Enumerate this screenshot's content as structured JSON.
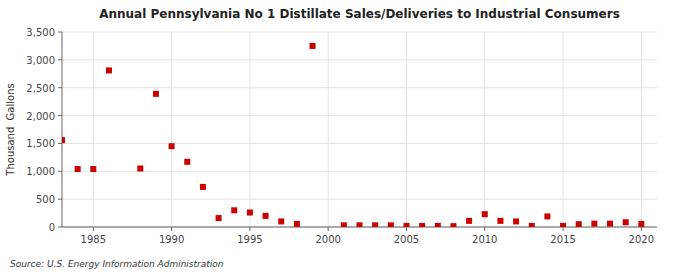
{
  "chart_data": {
    "type": "scatter",
    "title": "Annual Pennsylvania No 1 Distillate Sales/Deliveries to Industrial Consumers",
    "y_label": "Thousand  Gallons",
    "annotations": [
      "Source: U.S. Energy Information Administration"
    ],
    "color": "#cc0000",
    "marker": "square",
    "grid": true,
    "x": [
      1983,
      1984,
      1985,
      1986,
      1988,
      1989,
      1990,
      1991,
      1992,
      1993,
      1994,
      1995,
      1996,
      1997,
      1998,
      1999,
      2001,
      2002,
      2003,
      2004,
      2005,
      2006,
      2007,
      2008,
      2009,
      2010,
      2011,
      2012,
      2013,
      2014,
      2015,
      2016,
      2017,
      2018,
      2019,
      2020
    ],
    "values": [
      1560,
      1040,
      1040,
      2810,
      1050,
      2390,
      1450,
      1170,
      720,
      160,
      300,
      260,
      200,
      100,
      55,
      3250,
      30,
      30,
      30,
      30,
      20,
      20,
      20,
      15,
      110,
      230,
      110,
      100,
      20,
      190,
      20,
      50,
      60,
      60,
      85,
      55
    ],
    "xlim": [
      1983,
      2021
    ],
    "ylim": [
      0,
      3500
    ],
    "xticks": [
      1985,
      1990,
      1995,
      2000,
      2005,
      2010,
      2015,
      2020
    ],
    "yticks": [
      0,
      500,
      {
        "value": 1000,
        "label": "1,000"
      },
      {
        "value": 1500,
        "label": "1,500"
      },
      {
        "value": 2000,
        "label": "2,000"
      },
      {
        "value": 2500,
        "label": "2,500"
      },
      {
        "value": 3000,
        "label": "3,000"
      },
      {
        "value": 3500,
        "label": "3,500"
      }
    ]
  }
}
